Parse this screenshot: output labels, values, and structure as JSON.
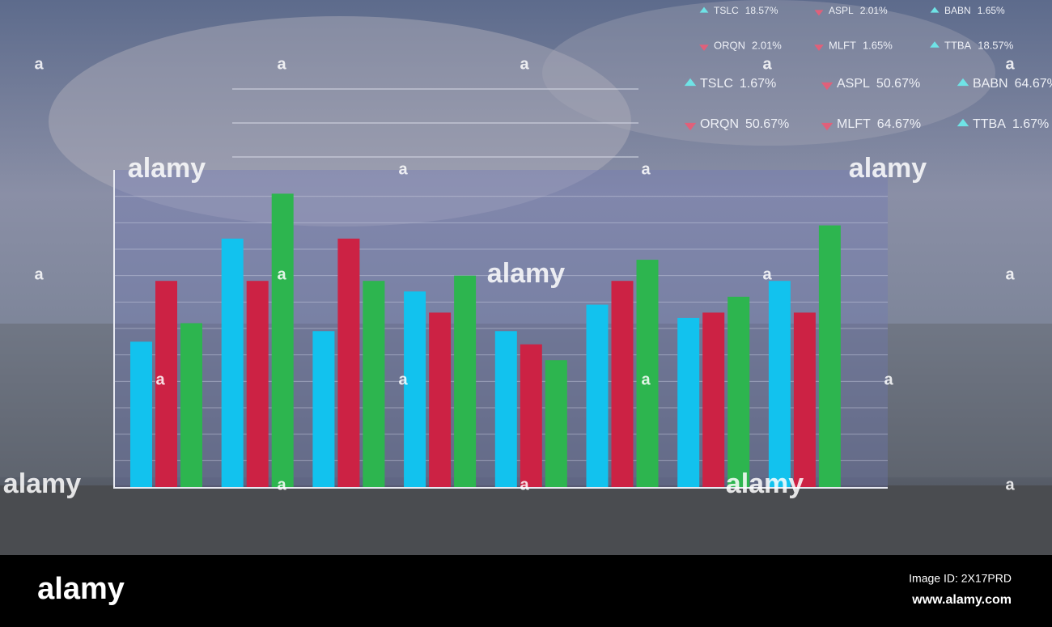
{
  "chart_data": {
    "type": "bar",
    "categories": [
      null,
      null,
      null,
      null,
      null,
      null,
      null,
      null
    ],
    "series": [
      {
        "color": "#12c2ee",
        "values": [
          5.5,
          9.4,
          5.9,
          7.4,
          5.9,
          6.9,
          6.4,
          7.8
        ]
      },
      {
        "color": "#cc2244",
        "values": [
          7.8,
          7.8,
          9.4,
          6.6,
          5.4,
          7.8,
          6.6,
          6.6
        ]
      },
      {
        "color": "#2db54f",
        "values": [
          6.2,
          11.1,
          7.8,
          8.0,
          4.8,
          8.6,
          7.2,
          9.9
        ]
      }
    ],
    "ylim": [
      0,
      12
    ],
    "grid": true
  },
  "tickers": [
    {
      "symbol": "TSLC",
      "change": "18.57%",
      "trend": "up"
    },
    {
      "symbol": "ASPL",
      "change": "2.01%",
      "trend": "down"
    },
    {
      "symbol": "BABN",
      "change": "1.65%",
      "trend": "up"
    },
    {
      "symbol": "ORQN",
      "change": "2.01%",
      "trend": "down"
    },
    {
      "symbol": "MLFT",
      "change": "1.65%",
      "trend": "down"
    },
    {
      "symbol": "TTBA",
      "change": "18.57%",
      "trend": "up"
    },
    {
      "symbol": "TSLC",
      "change": "1.67%",
      "trend": "up"
    },
    {
      "symbol": "ASPL",
      "change": "50.67%",
      "trend": "down"
    },
    {
      "symbol": "BABN",
      "change": "64.67%",
      "trend": "up"
    },
    {
      "symbol": "ORQN",
      "change": "50.67%",
      "trend": "down"
    },
    {
      "symbol": "MLFT",
      "change": "64.67%",
      "trend": "down"
    },
    {
      "symbol": "TTBA",
      "change": "1.67%",
      "trend": "up"
    }
  ],
  "watermark": {
    "word": "alamy",
    "mark": "a"
  },
  "footer": {
    "logo": "alamy",
    "image_id": "Image ID: 2X17PRD",
    "url": "www.alamy.com"
  }
}
